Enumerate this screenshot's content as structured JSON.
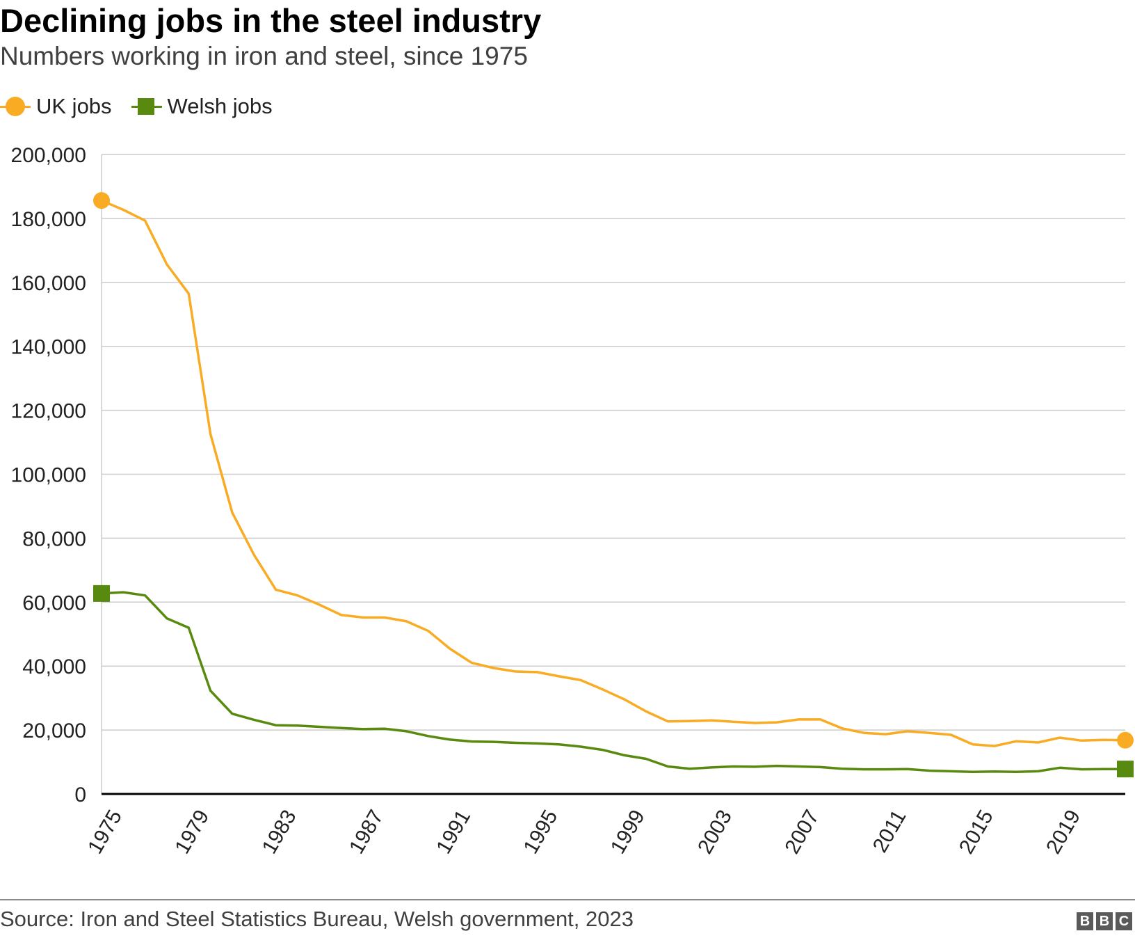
{
  "title": "Declining jobs in the steel industry",
  "subtitle": "Numbers working in iron and steel, since 1975",
  "legend": {
    "uk_label": "UK jobs",
    "welsh_label": "Welsh jobs"
  },
  "source": "Source: Iron and Steel Statistics Bureau, Welsh government, 2023",
  "logo": [
    "B",
    "B",
    "C"
  ],
  "colors": {
    "uk": "#f8ab23",
    "welsh": "#588a0f",
    "grid": "#cccccc",
    "axis": "#000000"
  },
  "chart_data": {
    "type": "line",
    "title": "Declining jobs in the steel industry",
    "subtitle": "Numbers working in iron and steel, since 1975",
    "xlabel": "",
    "ylabel": "",
    "xlim": [
      1975,
      2022
    ],
    "ylim": [
      0,
      200000
    ],
    "yticks": [
      0,
      20000,
      40000,
      60000,
      80000,
      100000,
      120000,
      140000,
      160000,
      180000,
      200000
    ],
    "ytick_labels": [
      "0",
      "20,000",
      "40,000",
      "60,000",
      "80,000",
      "100,000",
      "120,000",
      "140,000",
      "160,000",
      "180,000",
      "200,000"
    ],
    "xticks": [
      1975,
      1979,
      1983,
      1987,
      1991,
      1995,
      1999,
      2003,
      2007,
      2011,
      2015,
      2019
    ],
    "xtick_labels": [
      "1975",
      "1979",
      "1983",
      "1987",
      "1991",
      "1995",
      "1999",
      "2003",
      "2007",
      "2011",
      "2015",
      "2019"
    ],
    "grid": true,
    "legend": "top-left",
    "x": [
      1975,
      1976,
      1977,
      1978,
      1979,
      1980,
      1981,
      1982,
      1983,
      1984,
      1985,
      1986,
      1987,
      1988,
      1989,
      1990,
      1991,
      1992,
      1993,
      1994,
      1995,
      1996,
      1997,
      1998,
      1999,
      2000,
      2001,
      2002,
      2003,
      2004,
      2005,
      2006,
      2007,
      2008,
      2009,
      2010,
      2011,
      2012,
      2013,
      2014,
      2015,
      2016,
      2017,
      2018,
      2019,
      2020,
      2021,
      2022
    ],
    "series": [
      {
        "name": "UK jobs",
        "marker": "circle",
        "values": [
          185600,
          182700,
          179300,
          165600,
          156500,
          112600,
          88000,
          74800,
          63900,
          62100,
          59200,
          56000,
          55200,
          55200,
          54000,
          51000,
          45400,
          41000,
          39400,
          38300,
          38100,
          36800,
          35600,
          32700,
          29600,
          25800,
          22700,
          22800,
          23000,
          22600,
          22200,
          22400,
          23300,
          23300,
          20500,
          19100,
          18700,
          19600,
          19100,
          18500,
          15500,
          15000,
          16500,
          16100,
          17600,
          16700,
          16900,
          16800
        ]
      },
      {
        "name": "Welsh jobs",
        "marker": "square",
        "values": [
          62700,
          63100,
          62100,
          54900,
          52000,
          32300,
          25100,
          23200,
          21500,
          21400,
          21000,
          20600,
          20300,
          20400,
          19600,
          18100,
          17000,
          16400,
          16300,
          16000,
          15800,
          15500,
          14800,
          13800,
          12100,
          11000,
          8600,
          7900,
          8300,
          8600,
          8500,
          8800,
          8600,
          8400,
          7900,
          7700,
          7700,
          7800,
          7300,
          7100,
          6900,
          7000,
          6900,
          7100,
          8200,
          7700,
          7800,
          7800
        ]
      }
    ]
  }
}
